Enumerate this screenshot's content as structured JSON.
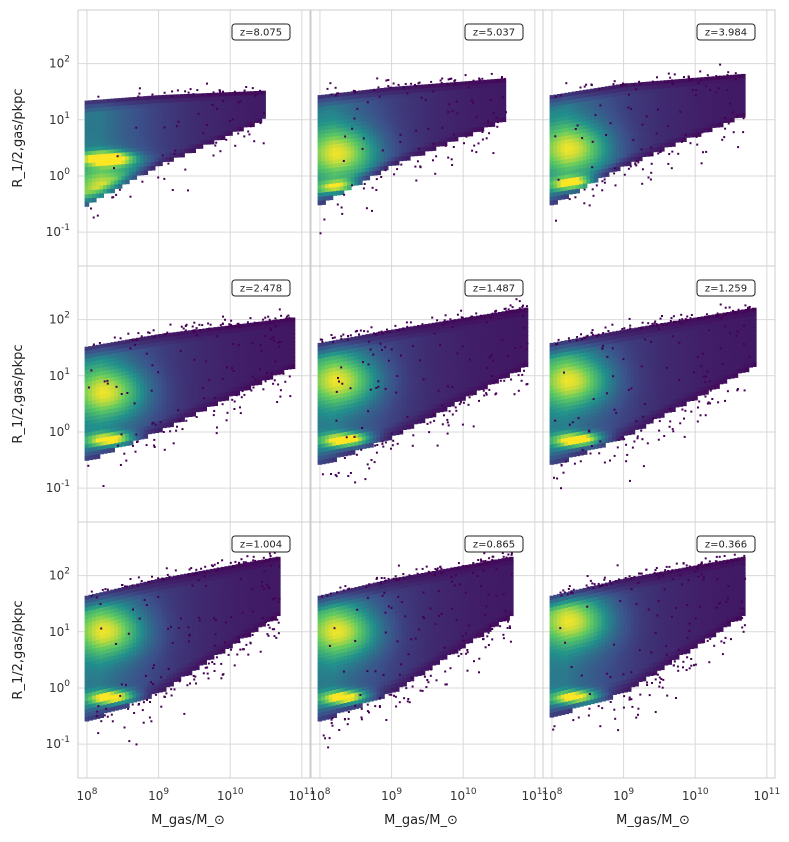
{
  "figure": {
    "xlabel": "M_gas/M_⊙",
    "ylabel": "R_1/2,gas/pkpc"
  },
  "chart_data": {
    "type": "heatmap",
    "layout": "3x3 grid of hexbin density panels (viridis colormap), shared log axes",
    "xscale": "log",
    "yscale": "log",
    "xlim": [
      75000000.0,
      130000000000.0
    ],
    "ylim": [
      0.025,
      900
    ],
    "xticks": [
      "10^8",
      "10^9",
      "10^10",
      "10^11"
    ],
    "yticks": [
      "10^-1",
      "10^0",
      "10^1",
      "10^2"
    ],
    "grid": true,
    "colormap": [
      "#440154",
      "#3b528b",
      "#21918c",
      "#5ec962",
      "#fde725"
    ],
    "panels": [
      {
        "z_label": "z = 8.075",
        "x_max": 30000000000.0,
        "upper": [
          20,
          25,
          30
        ],
        "lower": [
          0.3,
          1.5,
          10
        ],
        "peak": [
          200000000.0,
          2.0
        ],
        "peak2": [
          200000000.0,
          0.55
        ],
        "scatter": 0.3
      },
      {
        "z_label": "z = 5.037",
        "x_max": 40000000000.0,
        "upper": [
          25,
          35,
          50
        ],
        "lower": [
          0.3,
          1.5,
          10
        ],
        "peak": [
          250000000.0,
          0.6
        ],
        "peak2": [
          200000000.0,
          2.5
        ],
        "scatter": 0.5
      },
      {
        "z_label": "z = 3.984",
        "x_max": 50000000000.0,
        "upper": [
          25,
          40,
          60
        ],
        "lower": [
          0.3,
          1.5,
          12
        ],
        "peak": [
          250000000.0,
          0.7
        ],
        "peak2": [
          200000000.0,
          3.0
        ],
        "scatter": 0.55
      },
      {
        "z_label": "z = 2.478",
        "x_max": 80000000000.0,
        "upper": [
          30,
          50,
          100
        ],
        "lower": [
          0.3,
          1.0,
          15
        ],
        "peak": [
          250000000.0,
          0.7
        ],
        "peak2": [
          200000000.0,
          5.0
        ],
        "scatter": 0.7
      },
      {
        "z_label": "z = 1.487",
        "x_max": 80000000000.0,
        "upper": [
          35,
          60,
          150
        ],
        "lower": [
          0.25,
          0.8,
          15
        ],
        "peak": [
          250000000.0,
          0.7
        ],
        "peak2": [
          200000000.0,
          8.0
        ],
        "scatter": 0.8
      },
      {
        "z_label": "z = 1.259",
        "x_max": 70000000000.0,
        "upper": [
          35,
          60,
          150
        ],
        "lower": [
          0.25,
          0.8,
          15
        ],
        "peak": [
          250000000.0,
          0.7
        ],
        "peak2": [
          200000000.0,
          8.0
        ],
        "scatter": 0.8
      },
      {
        "z_label": "z = 1.004",
        "x_max": 50000000000.0,
        "upper": [
          40,
          80,
          200
        ],
        "lower": [
          0.25,
          0.8,
          20
        ],
        "peak": [
          250000000.0,
          0.65
        ],
        "peak2": [
          200000000.0,
          10.0
        ],
        "scatter": 0.8
      },
      {
        "z_label": "z = 0.865",
        "x_max": 50000000000.0,
        "upper": [
          40,
          80,
          200
        ],
        "lower": [
          0.25,
          0.8,
          20
        ],
        "peak": [
          250000000.0,
          0.65
        ],
        "peak2": [
          200000000.0,
          10.0
        ],
        "scatter": 0.8
      },
      {
        "z_label": "z = 0.366",
        "x_max": 50000000000.0,
        "upper": [
          40,
          80,
          200
        ],
        "lower": [
          0.3,
          0.8,
          20
        ],
        "peak": [
          250000000.0,
          0.65
        ],
        "peak2": [
          200000000.0,
          15.0
        ],
        "scatter": 0.8
      }
    ]
  }
}
